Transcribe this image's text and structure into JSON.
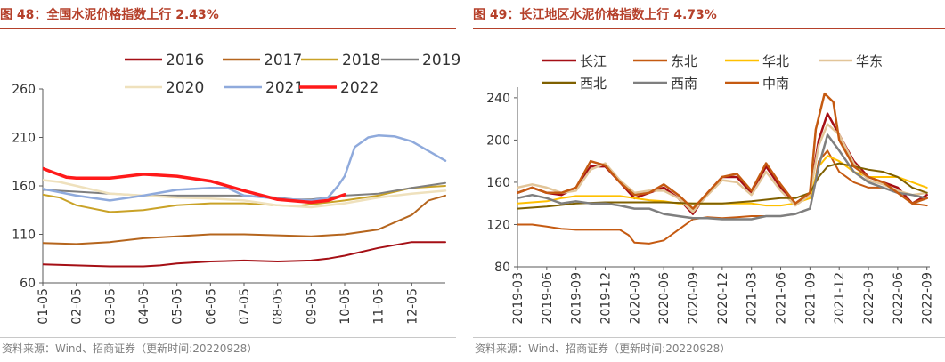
{
  "charts": [
    {
      "title": "图 48：全国水泥价格指数上行 2.43%",
      "source": "资料来源：Wind、招商证券（更新时间:20220928）",
      "colors": {
        "title": "#b5402a"
      }
    },
    {
      "title": "图 49：长江地区水泥价格指数上行 4.73%",
      "source": "资料来源：Wind、招商证券（更新时间:20220928）",
      "colors": {
        "title": "#b5402a"
      }
    }
  ],
  "chart_data": [
    {
      "type": "line",
      "x_tick_labels": [
        "01-05",
        "02-05",
        "03-05",
        "04-05",
        "05-05",
        "06-05",
        "07-05",
        "08-05",
        "09-05",
        "10-05",
        "11-05",
        "12-05"
      ],
      "x_range": [
        0,
        12
      ],
      "ylim": [
        60,
        260
      ],
      "y_ticks": [
        60,
        110,
        160,
        210,
        260
      ],
      "grid": false,
      "legend_position": "top",
      "series": [
        {
          "name": "2016",
          "color": "#a50f15",
          "width": 2,
          "x": [
            0,
            1,
            2,
            3,
            3.5,
            4,
            5,
            6,
            7,
            8,
            8.5,
            9,
            10,
            11,
            12
          ],
          "y": [
            79,
            78,
            77,
            77,
            78,
            80,
            82,
            83,
            82,
            83,
            85,
            88,
            96,
            102,
            102
          ]
        },
        {
          "name": "2017",
          "color": "#b5651d",
          "width": 2,
          "x": [
            0,
            1,
            2,
            3,
            4,
            5,
            6,
            7,
            8,
            9,
            10,
            11,
            11.5,
            12
          ],
          "y": [
            101,
            100,
            102,
            106,
            108,
            110,
            110,
            109,
            108,
            110,
            115,
            130,
            145,
            150
          ]
        },
        {
          "name": "2018",
          "color": "#c9a227",
          "width": 2,
          "x": [
            0,
            0.5,
            1,
            2,
            3,
            4,
            5,
            6,
            7,
            7.5,
            8,
            9,
            10,
            11,
            12
          ],
          "y": [
            151,
            148,
            140,
            133,
            135,
            140,
            142,
            142,
            140,
            139,
            141,
            145,
            150,
            158,
            160
          ]
        },
        {
          "name": "2019",
          "color": "#7f7f7f",
          "width": 2,
          "x": [
            0,
            1,
            2,
            3,
            4,
            5,
            6,
            7,
            7.5,
            8,
            9,
            10,
            11,
            12
          ],
          "y": [
            156,
            154,
            152,
            150,
            150,
            150,
            150,
            148,
            146,
            146,
            150,
            152,
            158,
            163
          ]
        },
        {
          "name": "2020",
          "color": "#efe1bd",
          "width": 2.5,
          "x": [
            0,
            0.5,
            1,
            2,
            3,
            4,
            5,
            6,
            7,
            8,
            9,
            10,
            11,
            12
          ],
          "y": [
            166,
            164,
            160,
            152,
            150,
            148,
            147,
            145,
            140,
            138,
            142,
            148,
            152,
            155
          ]
        },
        {
          "name": "2021",
          "color": "#8faadc",
          "width": 2.5,
          "x": [
            0,
            1,
            2,
            3,
            4,
            5,
            5.5,
            6,
            7,
            8,
            8.5,
            8.8,
            9,
            9.3,
            9.7,
            10,
            10.5,
            11,
            11.5,
            12
          ],
          "y": [
            157,
            150,
            145,
            150,
            156,
            158,
            158,
            150,
            147,
            145,
            148,
            160,
            170,
            200,
            210,
            212,
            211,
            206,
            196,
            186
          ]
        },
        {
          "name": "2022",
          "color": "#ff1a1a",
          "width": 3.5,
          "x": [
            0,
            0.3,
            0.7,
            1,
            2,
            3,
            4,
            5,
            6,
            7,
            8,
            8.5,
            9
          ],
          "y": [
            178,
            174,
            169,
            168,
            168,
            172,
            170,
            165,
            155,
            146,
            143,
            145,
            151
          ]
        }
      ]
    },
    {
      "type": "line",
      "x_tick_labels": [
        "2019-03",
        "2019-06",
        "2019-09",
        "2019-12",
        "2020-03",
        "2020-06",
        "2020-09",
        "2020-12",
        "2021-03",
        "2021-06",
        "2021-09",
        "2021-12",
        "2022-03",
        "2022-06",
        "2022-09"
      ],
      "x_range": [
        0,
        14.1
      ],
      "ylim": [
        80,
        250
      ],
      "y_ticks": [
        80,
        120,
        160,
        200,
        240
      ],
      "grid": false,
      "legend_position": "top",
      "series": [
        {
          "name": "长江",
          "color": "#a50f15",
          "width": 2.5,
          "x": [
            0,
            0.5,
            1,
            1.5,
            2,
            2.5,
            3,
            3.5,
            4,
            4.5,
            5,
            5.5,
            6,
            6.5,
            7,
            7.5,
            8,
            8.5,
            9,
            9.5,
            10,
            10.3,
            10.6,
            11,
            11.5,
            12,
            12.5,
            13,
            13.5,
            14
          ],
          "y": [
            150,
            155,
            150,
            148,
            155,
            175,
            175,
            160,
            145,
            150,
            155,
            145,
            130,
            150,
            165,
            165,
            150,
            175,
            155,
            140,
            150,
            200,
            225,
            205,
            180,
            165,
            160,
            155,
            140,
            148
          ]
        },
        {
          "name": "东北",
          "color": "#c55a11",
          "width": 2,
          "x": [
            0,
            0.5,
            1,
            1.5,
            2,
            2.5,
            3,
            3.5,
            3.8,
            4,
            4.5,
            5,
            5.5,
            6,
            6.5,
            7,
            7.5,
            8,
            8.5,
            9,
            9.5,
            10,
            10.3,
            10.6,
            11,
            11.5,
            12,
            12.5,
            13,
            13.5,
            14
          ],
          "y": [
            120,
            120,
            118,
            116,
            115,
            115,
            115,
            115,
            110,
            103,
            102,
            105,
            115,
            125,
            127,
            126,
            127,
            128,
            128,
            128,
            130,
            135,
            180,
            190,
            170,
            160,
            155,
            155,
            150,
            140,
            138
          ]
        },
        {
          "name": "华北",
          "color": "#ffc000",
          "width": 2,
          "x": [
            0,
            1,
            1.5,
            2,
            2.5,
            3,
            3.5,
            4,
            4.5,
            5,
            5.5,
            6,
            6.5,
            7,
            7.5,
            8,
            8.5,
            9,
            9.5,
            10,
            10.3,
            10.6,
            11,
            11.5,
            12,
            12.5,
            13,
            13.5,
            14
          ],
          "y": [
            140,
            142,
            145,
            147,
            147,
            147,
            147,
            145,
            143,
            142,
            140,
            140,
            140,
            140,
            140,
            140,
            138,
            138,
            140,
            145,
            175,
            185,
            180,
            170,
            165,
            165,
            165,
            160,
            155
          ]
        },
        {
          "name": "华东",
          "color": "#e2c599",
          "width": 2.5,
          "x": [
            0,
            0.5,
            1,
            1.5,
            2,
            2.5,
            3,
            3.5,
            4,
            4.5,
            5,
            5.5,
            6,
            6.5,
            7,
            7.5,
            8,
            8.5,
            9,
            9.5,
            10,
            10.3,
            10.6,
            11,
            11.5,
            12,
            12.5,
            13,
            13.5,
            14
          ],
          "y": [
            155,
            158,
            155,
            150,
            152,
            172,
            178,
            162,
            150,
            152,
            152,
            145,
            132,
            148,
            162,
            160,
            148,
            170,
            152,
            138,
            148,
            195,
            215,
            205,
            178,
            162,
            158,
            152,
            148,
            150
          ]
        },
        {
          "name": "西北",
          "color": "#7f6000",
          "width": 2,
          "x": [
            0,
            1,
            2,
            3,
            4,
            5,
            6,
            7,
            8,
            9,
            9.5,
            10,
            10.3,
            10.6,
            11,
            11.5,
            12,
            12.5,
            13,
            13.5,
            14
          ],
          "y": [
            135,
            137,
            140,
            141,
            141,
            141,
            140,
            140,
            142,
            145,
            145,
            150,
            165,
            175,
            178,
            175,
            172,
            170,
            165,
            155,
            150
          ]
        },
        {
          "name": "西南",
          "color": "#7f7f7f",
          "width": 2.5,
          "x": [
            0,
            0.5,
            1,
            1.5,
            2,
            2.5,
            3,
            3.5,
            4,
            4.5,
            5,
            5.5,
            6,
            6.5,
            7,
            7.5,
            8,
            8.5,
            9,
            9.5,
            10,
            10.3,
            10.6,
            11,
            11.5,
            12,
            12.5,
            13,
            13.5,
            14
          ],
          "y": [
            145,
            148,
            145,
            140,
            142,
            140,
            140,
            138,
            135,
            135,
            130,
            128,
            126,
            126,
            125,
            125,
            125,
            128,
            128,
            130,
            135,
            175,
            205,
            190,
            170,
            160,
            155,
            150,
            148,
            145
          ]
        },
        {
          "name": "中南",
          "color": "#c55a11",
          "width": 2.5,
          "x": [
            0,
            0.5,
            1,
            1.5,
            2,
            2.5,
            3,
            3.5,
            4,
            4.5,
            5,
            5.5,
            6,
            6.5,
            7,
            7.5,
            8,
            8.5,
            9,
            9.5,
            10,
            10.2,
            10.5,
            10.8,
            11,
            11.5,
            12,
            12.5,
            13,
            13.5,
            14
          ],
          "y": [
            150,
            155,
            150,
            150,
            155,
            180,
            176,
            160,
            148,
            150,
            158,
            148,
            135,
            150,
            165,
            168,
            152,
            178,
            158,
            140,
            150,
            210,
            244,
            236,
            200,
            175,
            165,
            160,
            150,
            140,
            145
          ]
        }
      ]
    }
  ]
}
